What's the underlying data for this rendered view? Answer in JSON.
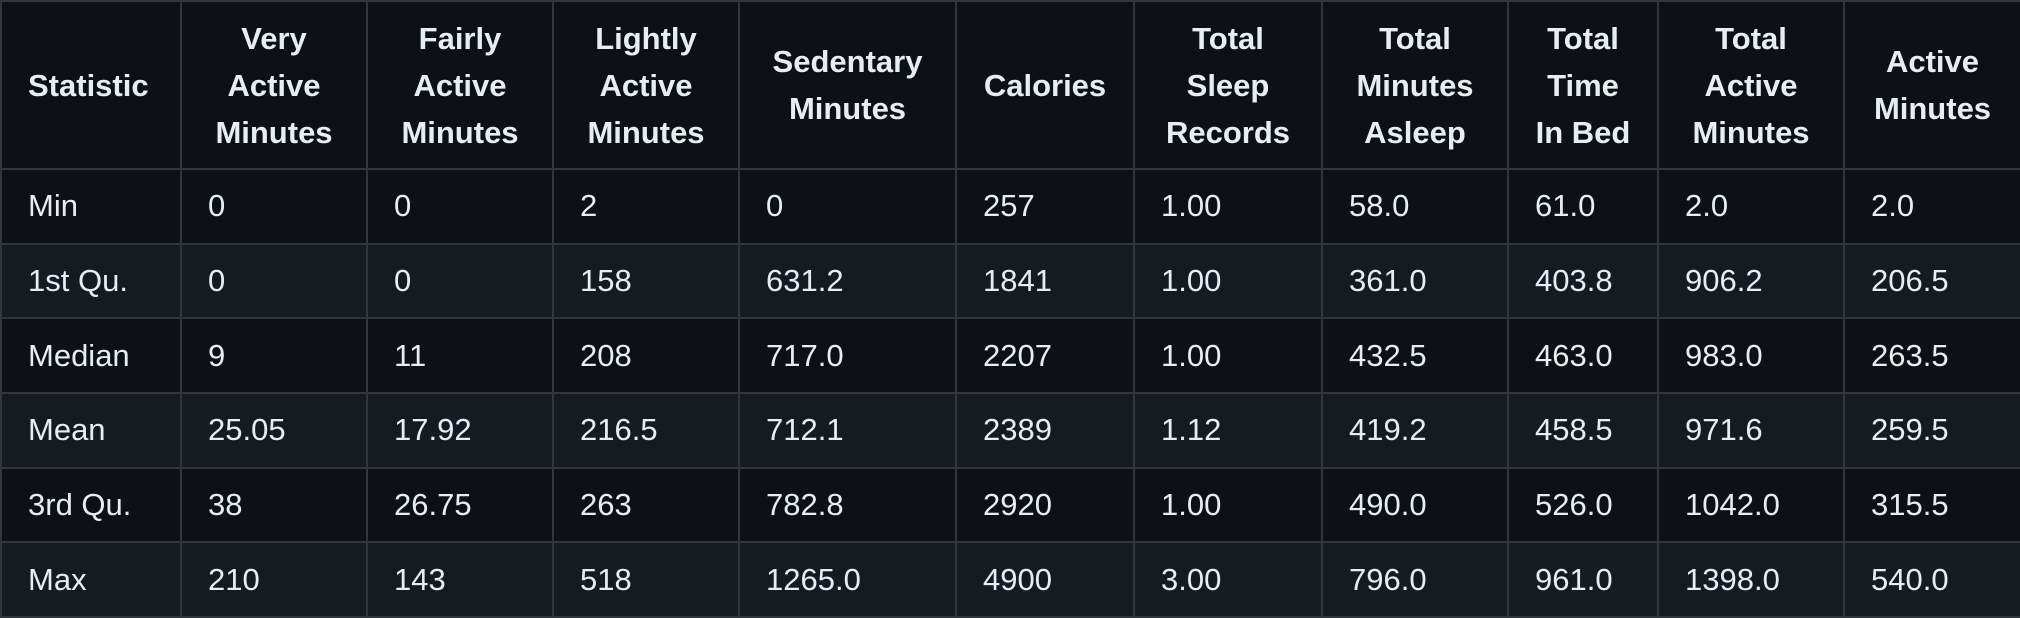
{
  "table": {
    "headers": [
      "Statistic",
      "Very Active Minutes",
      "Fairly Active Minutes",
      "Lightly Active Minutes",
      "Sedentary Minutes",
      "Calories",
      "Total Sleep Records",
      "Total Minutes Asleep",
      "Total Time In Bed",
      "Total Active Minutes",
      "Active Minutes"
    ],
    "rows": [
      [
        "Min",
        "0",
        "0",
        "2",
        "0",
        "257",
        "1.00",
        "58.0",
        "61.0",
        "2.0",
        "2.0"
      ],
      [
        "1st Qu.",
        "0",
        "0",
        "158",
        "631.2",
        "1841",
        "1.00",
        "361.0",
        "403.8",
        "906.2",
        "206.5"
      ],
      [
        "Median",
        "9",
        "11",
        "208",
        "717.0",
        "2207",
        "1.00",
        "432.5",
        "463.0",
        "983.0",
        "263.5"
      ],
      [
        "Mean",
        "25.05",
        "17.92",
        "216.5",
        "712.1",
        "2389",
        "1.12",
        "419.2",
        "458.5",
        "971.6",
        "259.5"
      ],
      [
        "3rd Qu.",
        "38",
        "26.75",
        "263",
        "782.8",
        "2920",
        "1.00",
        "490.0",
        "526.0",
        "1042.0",
        "315.5"
      ],
      [
        "Max",
        "210",
        "143",
        "518",
        "1265.0",
        "4900",
        "3.00",
        "796.0",
        "961.0",
        "1398.0",
        "540.0"
      ]
    ]
  }
}
